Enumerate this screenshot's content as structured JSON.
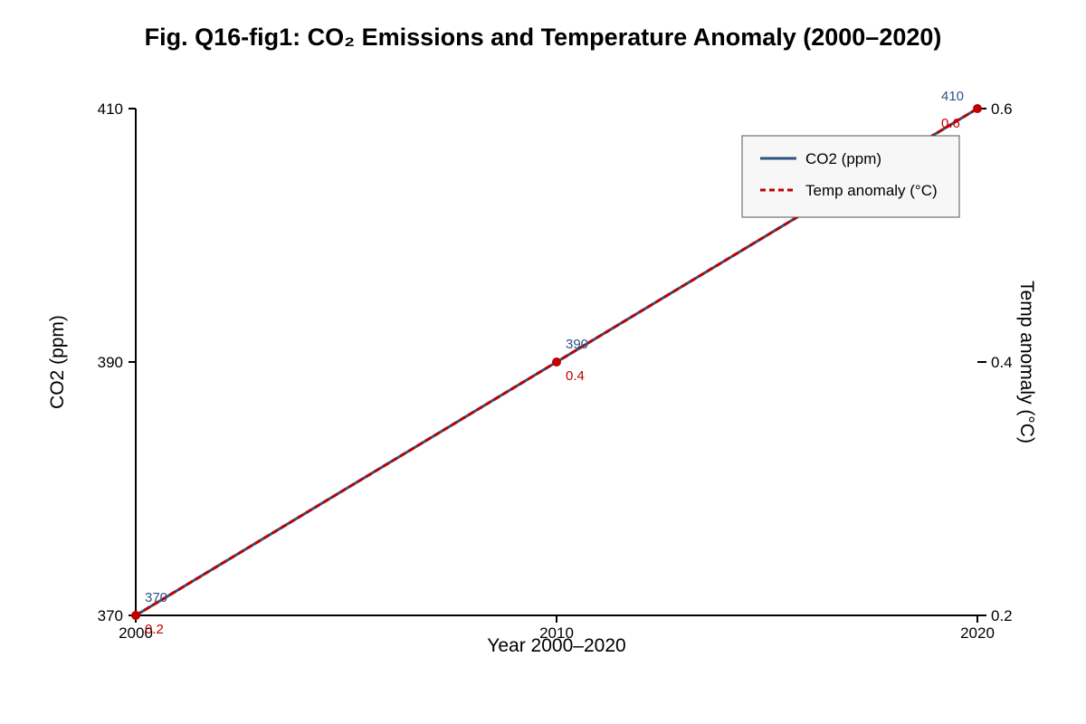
{
  "chart_data": {
    "type": "line",
    "title": "Fig. Q16-fig1: CO₂ Emissions and Temperature Anomaly (2000–2020)",
    "xlabel": "Year 2000–2020",
    "ylabel": "CO2 (ppm)",
    "ylabel_right": "Temp anomaly (°C)",
    "x": [
      2000,
      2010,
      2020
    ],
    "x_tick_labels": [
      "2000",
      "2010",
      "2020"
    ],
    "xlim": [
      2000,
      2020
    ],
    "ylim": [
      370,
      410
    ],
    "ylim_right": [
      0.2,
      0.6
    ],
    "y_ticks": [
      "370",
      "390",
      "410"
    ],
    "y_ticks_right": [
      "0.2",
      "0.4",
      "0.6"
    ],
    "grid": false,
    "legend_position": "top-right",
    "series": [
      {
        "name": "CO2 (ppm)",
        "axis": "left",
        "style": "solid",
        "color": "#2c5480",
        "values": [
          370,
          390,
          410
        ],
        "labels": [
          "370",
          "390",
          "410"
        ]
      },
      {
        "name": "Temp anomaly (°C)",
        "axis": "right",
        "style": "dashed",
        "color": "#c00000",
        "values": [
          0.2,
          0.4,
          0.6
        ],
        "labels": [
          "0.2",
          "0.4",
          "0.6"
        ]
      }
    ]
  }
}
